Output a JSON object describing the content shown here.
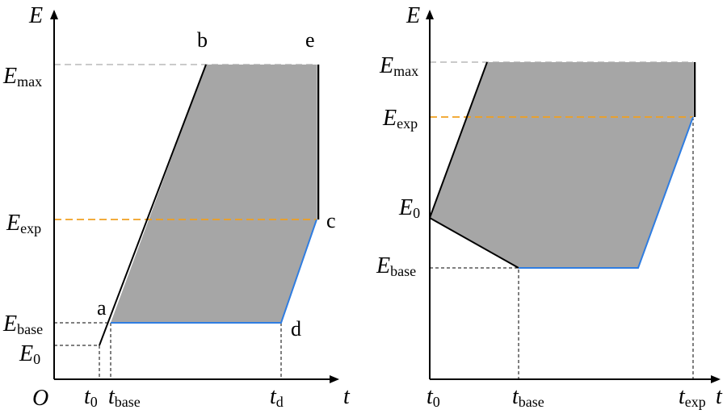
{
  "left_panel": {
    "axis_labels": {
      "y": "E",
      "x": "t",
      "origin": "O"
    },
    "energy_labels": [
      {
        "symbol": "E",
        "subscript": "max"
      },
      {
        "symbol": "E",
        "subscript": "exp"
      },
      {
        "symbol": "E",
        "subscript": "base"
      },
      {
        "symbol": "E",
        "subscript": "0"
      }
    ],
    "time_labels": [
      {
        "symbol": "t",
        "subscript": "0"
      },
      {
        "symbol": "t",
        "subscript": "base"
      },
      {
        "symbol": "t",
        "subscript": "d"
      }
    ],
    "point_labels": [
      "a",
      "b",
      "c",
      "d",
      "e"
    ]
  },
  "right_panel": {
    "axis_labels": {
      "y": "E",
      "x": "t"
    },
    "energy_labels": [
      {
        "symbol": "E",
        "subscript": "max"
      },
      {
        "symbol": "E",
        "subscript": "exp"
      },
      {
        "symbol": "E",
        "subscript": "0"
      },
      {
        "symbol": "E",
        "subscript": "base"
      }
    ],
    "time_labels": [
      {
        "symbol": "t",
        "subscript": "0"
      },
      {
        "symbol": "t",
        "subscript": "base"
      },
      {
        "symbol": "t",
        "subscript": "exp"
      }
    ]
  }
}
